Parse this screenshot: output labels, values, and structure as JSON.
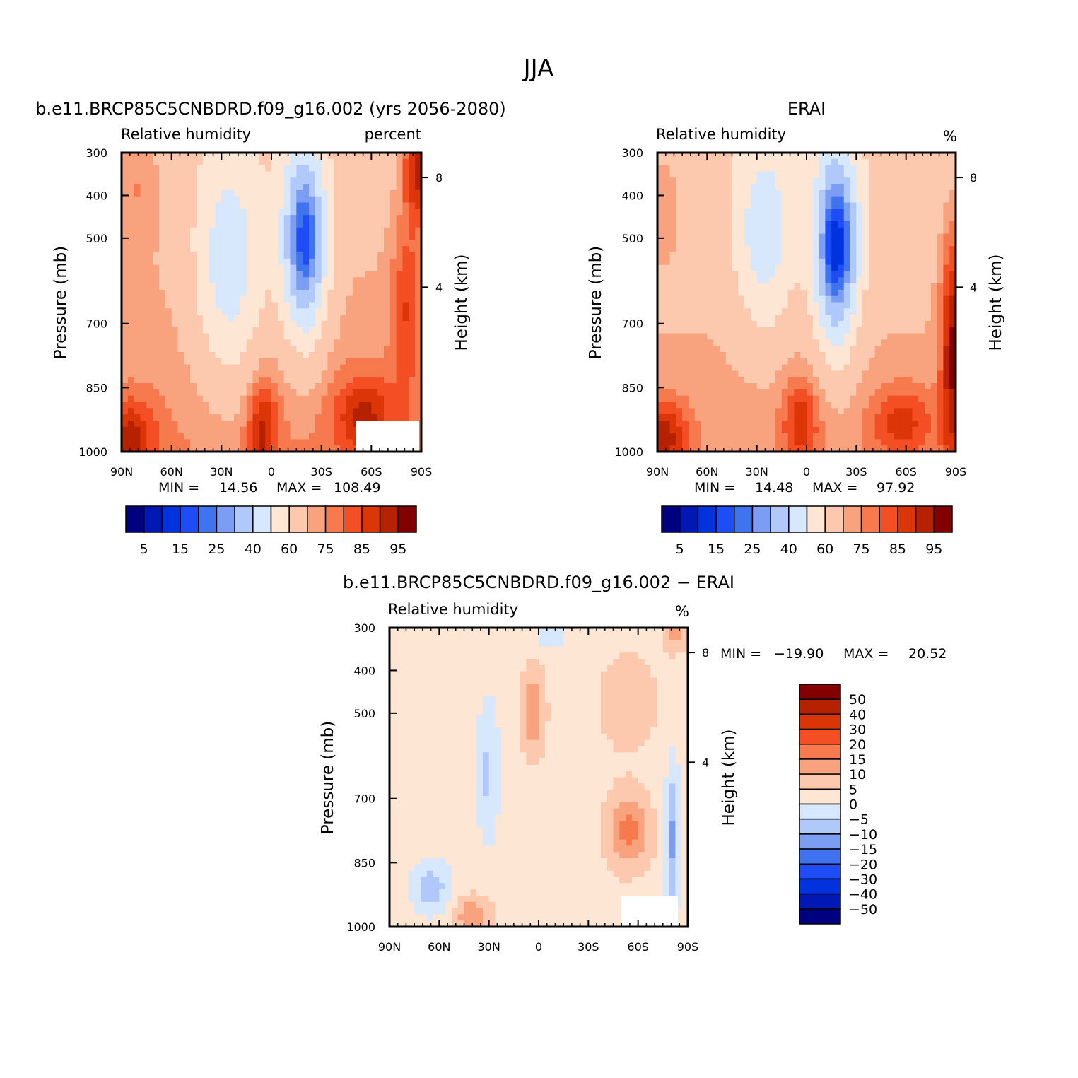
{
  "title": "JJA",
  "chart_data": [
    {
      "type": "contour",
      "title": "b.e11.BRCP85C5CNBDRD.f09_g16.002 (yrs 2056-2080)",
      "left_label": "Relative humidity",
      "right_label": "percent",
      "ylabel": "Pressure (mb)",
      "y2label": "Height (km)",
      "xticks": [
        "90N",
        "60N",
        "30N",
        "0",
        "30S",
        "60S",
        "90S"
      ],
      "yticks": [
        "300",
        "400",
        "500",
        "700",
        "850",
        "1000"
      ],
      "y2ticks": [
        "8",
        "4"
      ],
      "stats": {
        "min_label": "MIN =",
        "min": "14.56",
        "max_label": "MAX =",
        "max": "108.49"
      },
      "levels": [
        5,
        10,
        15,
        20,
        25,
        30,
        40,
        50,
        60,
        70,
        75,
        80,
        85,
        90,
        95
      ],
      "level_labels": [
        "5",
        "15",
        "25",
        "40",
        "60",
        "75",
        "85",
        "95"
      ],
      "min": 14.56,
      "max": 108.49
    },
    {
      "type": "contour",
      "title": "ERAI",
      "left_label": "Relative humidity",
      "right_label": "%",
      "ylabel": "Pressure (mb)",
      "y2label": "Height (km)",
      "xticks": [
        "90N",
        "60N",
        "30N",
        "0",
        "30S",
        "60S",
        "90S"
      ],
      "yticks": [
        "300",
        "400",
        "500",
        "700",
        "850",
        "1000"
      ],
      "y2ticks": [
        "8",
        "4"
      ],
      "stats": {
        "min_label": "MIN =",
        "min": "14.48",
        "max_label": "MAX =",
        "max": "97.92"
      },
      "levels": [
        5,
        10,
        15,
        20,
        25,
        30,
        40,
        50,
        60,
        70,
        75,
        80,
        85,
        90,
        95
      ],
      "level_labels": [
        "5",
        "15",
        "25",
        "40",
        "60",
        "75",
        "85",
        "95"
      ],
      "min": 14.48,
      "max": 97.92
    },
    {
      "type": "contour",
      "title": "b.e11.BRCP85C5CNBDRD.f09_g16.002 − ERAI",
      "left_label": "Relative humidity",
      "right_label": "%",
      "ylabel": "Pressure (mb)",
      "y2label": "Height (km)",
      "xticks": [
        "90N",
        "60N",
        "30N",
        "0",
        "30S",
        "60S",
        "90S"
      ],
      "yticks": [
        "300",
        "400",
        "500",
        "700",
        "850",
        "1000"
      ],
      "y2ticks": [
        "8",
        "4"
      ],
      "stats": {
        "min_label": "MIN =",
        "min": "−19.90",
        "max_label": "MAX =",
        "max": "20.52"
      },
      "levels": [
        50,
        40,
        30,
        20,
        15,
        10,
        5,
        0,
        -5,
        -10,
        -15,
        -20,
        -30,
        -40,
        -50
      ],
      "level_labels": [
        "50",
        "40",
        "30",
        "20",
        "15",
        "10",
        "5",
        "0",
        "−5",
        "−10",
        "−15",
        "−20",
        "−30",
        "−40",
        "−50"
      ],
      "min": -19.9,
      "max": 20.52
    }
  ],
  "colors": {
    "abs_palette": [
      "#000080",
      "#0019b4",
      "#0033dd",
      "#1f4df5",
      "#3f73f0",
      "#7b9df2",
      "#b0c9fa",
      "#d8e8fc",
      "#fde6d4",
      "#fcc8ae",
      "#f9a27e",
      "#f77a4f",
      "#f34e24",
      "#dc3508",
      "#b62100",
      "#830000"
    ],
    "diff_palette": [
      "#830000",
      "#b62100",
      "#dc3508",
      "#f34e24",
      "#f77a4f",
      "#f9a27e",
      "#fcc8ae",
      "#fde6d4",
      "#d8e8fc",
      "#b0c9fa",
      "#7b9df2",
      "#3f73f0",
      "#1f4df5",
      "#0033dd",
      "#0019b4",
      "#000080"
    ]
  }
}
